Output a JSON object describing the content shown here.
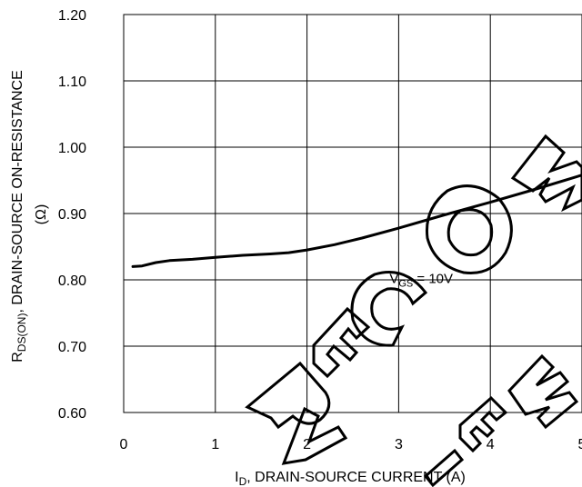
{
  "chart_data": {
    "type": "line",
    "x_ticks": [
      "0",
      "1",
      "2",
      "3",
      "4",
      "5"
    ],
    "y_ticks": [
      "0.60",
      "0.70",
      "0.80",
      "0.90",
      "1.00",
      "1.10",
      "1.20"
    ],
    "xlim": [
      0,
      5
    ],
    "ylim": [
      0.6,
      1.2
    ],
    "grid": true,
    "xlabel": {
      "main": "I",
      "sub": "D",
      "rest": ", DRAIN-SOURCE CURRENT (A)"
    },
    "ylabel": {
      "line1": {
        "main": "R",
        "sub": "DS(ON)",
        "rest": ", DRAIN-SOURCE ON-RESISTANCE"
      },
      "line2": "(Ω)"
    },
    "annotation": {
      "main": "V",
      "sub": "GS",
      "rest": " = 10V",
      "x": 2.9,
      "y": 0.795
    },
    "series": [
      {
        "x": [
          0.1,
          0.2,
          0.35,
          0.5,
          0.75,
          1.0,
          1.3,
          1.6,
          1.8,
          2.0,
          2.3,
          2.6,
          3.0,
          3.5,
          4.0,
          4.5,
          5.0
        ],
        "y": [
          0.82,
          0.821,
          0.826,
          0.829,
          0.831,
          0.834,
          0.837,
          0.839,
          0.841,
          0.845,
          0.853,
          0.863,
          0.878,
          0.898,
          0.917,
          0.937,
          0.958
        ]
      }
    ],
    "line_color": "#000000"
  },
  "watermark": {
    "text": "NOT RECOMMENDED FOR NEW DESIGNS"
  }
}
